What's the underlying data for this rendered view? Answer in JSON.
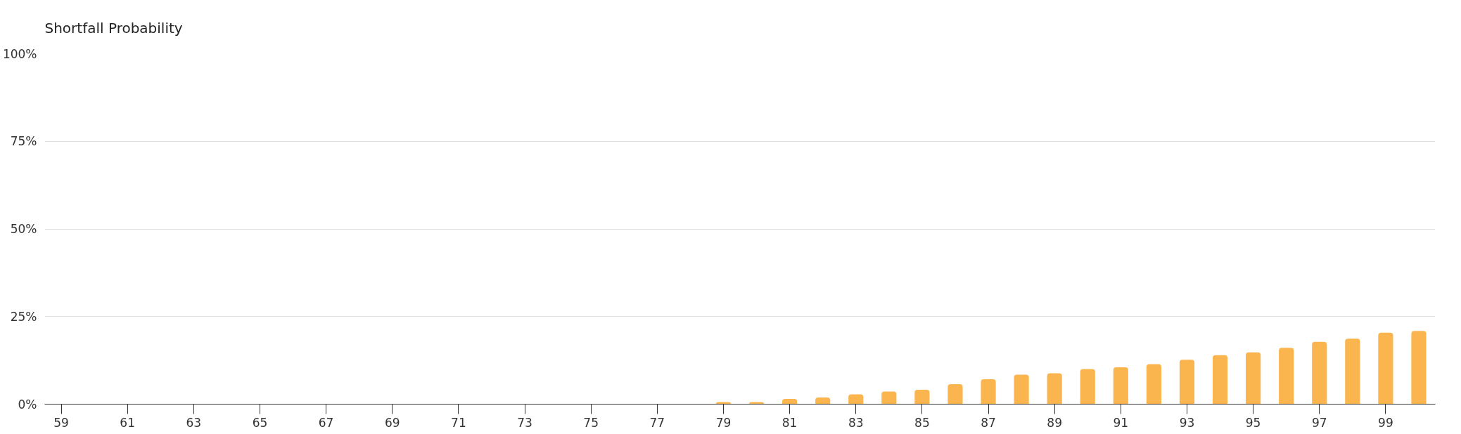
{
  "chart_data": {
    "type": "bar",
    "title": "Shortfall Probability",
    "x": [
      59,
      60,
      61,
      62,
      63,
      64,
      65,
      66,
      67,
      68,
      69,
      70,
      71,
      72,
      73,
      74,
      75,
      76,
      77,
      78,
      79,
      80,
      81,
      82,
      83,
      84,
      85,
      86,
      87,
      88,
      89,
      90,
      91,
      92,
      93,
      94,
      95,
      96,
      97,
      98,
      99,
      100
    ],
    "values": [
      0,
      0,
      0,
      0,
      0,
      0,
      0,
      0,
      0,
      0,
      0,
      0,
      0,
      0,
      0,
      0,
      0,
      0,
      0,
      0,
      0.6,
      0.6,
      1.5,
      1.9,
      2.8,
      3.6,
      4.1,
      5.7,
      7.1,
      8.4,
      8.8,
      10.0,
      10.5,
      11.4,
      12.7,
      14.0,
      14.8,
      16.1,
      17.8,
      18.7,
      20.4,
      20.9
    ],
    "color": "#fbb54f",
    "xlim": [
      58.5,
      100.5
    ],
    "xticks": [
      59,
      61,
      63,
      65,
      67,
      69,
      71,
      73,
      75,
      77,
      79,
      81,
      83,
      85,
      87,
      89,
      91,
      93,
      95,
      97,
      99
    ],
    "ylim": [
      0,
      100
    ],
    "yticks": [
      {
        "value": 0,
        "label": "0%"
      },
      {
        "value": 25,
        "label": "25%"
      },
      {
        "value": 50,
        "label": "50%"
      },
      {
        "value": 75,
        "label": "75%"
      },
      {
        "value": 100,
        "label": "100%"
      }
    ],
    "grid": "y"
  }
}
